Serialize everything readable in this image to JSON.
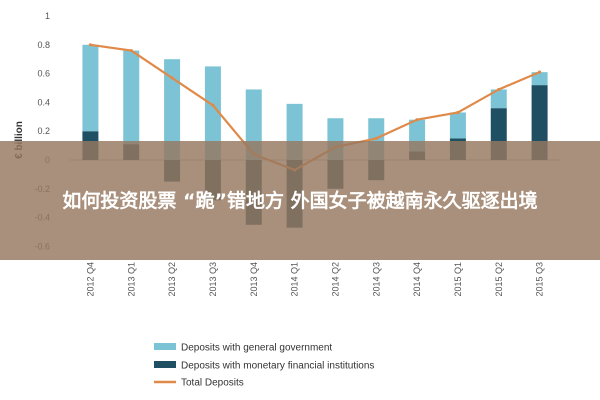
{
  "headline": "如何投资股票 “跪”错地方 外国女子被越南永久驱逐出境",
  "chart_data": {
    "type": "bar",
    "ylabel": "€ billion",
    "ylim": [
      -0.7,
      1.0
    ],
    "yticks": [
      1,
      0.8,
      0.6,
      0.4,
      0.2,
      0,
      -0.2,
      -0.4,
      -0.6
    ],
    "ytick_labels": [
      "1",
      "0.8",
      "0.6",
      "0.4",
      "0.2",
      "0",
      "-0.2",
      "-0.4",
      "-0.6"
    ],
    "categories": [
      "2012 Q4",
      "2013 Q1",
      "2013 Q2",
      "2013 Q3",
      "2013 Q4",
      "2014 Q1",
      "2014 Q2",
      "2014 Q3",
      "2014 Q4",
      "2015 Q1",
      "2015 Q2",
      "2015 Q3"
    ],
    "series": [
      {
        "name": "Deposits with general government",
        "kind": "bar",
        "color": "#7cc3d6",
        "values": [
          0.6,
          0.65,
          0.7,
          0.65,
          0.49,
          0.39,
          0.29,
          0.29,
          0.22,
          0.18,
          0.13,
          0.09
        ]
      },
      {
        "name": "Deposits with monetary financial institutions",
        "kind": "bar",
        "color": "#1e4f63",
        "values": [
          0.2,
          0.11,
          -0.15,
          -0.28,
          -0.45,
          -0.47,
          -0.2,
          -0.14,
          0.06,
          0.15,
          0.36,
          0.52
        ]
      },
      {
        "name": "Total Deposits",
        "kind": "line",
        "color": "#e08a4a",
        "values": [
          0.8,
          0.76,
          0.57,
          0.38,
          0.04,
          -0.07,
          0.09,
          0.15,
          0.28,
          0.33,
          0.49,
          0.61
        ]
      }
    ],
    "grid": false,
    "legend": "bottom"
  }
}
